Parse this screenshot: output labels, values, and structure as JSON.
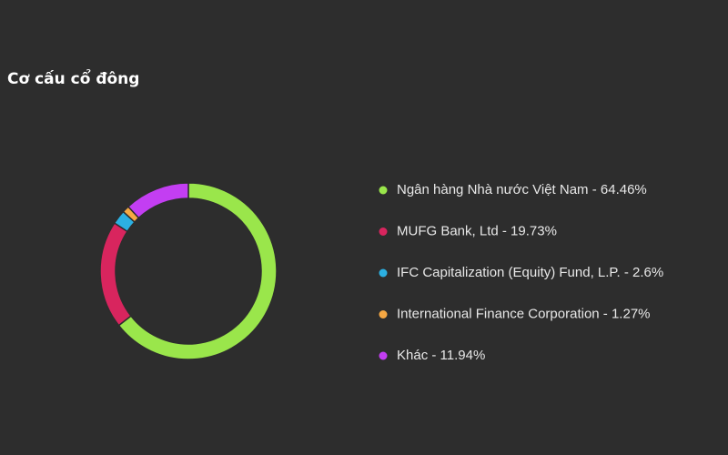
{
  "chart_data": {
    "type": "pie",
    "title": "Cơ cấu cổ đông",
    "categories": [
      "Ngân hàng Nhà nước Việt Nam - 64.46%",
      "MUFG Bank, Ltd - 19.73%",
      "IFC Capitalization (Equity) Fund, L.P. - 2.6%",
      "International Finance Corporation - 1.27%",
      "Khác - 11.94%"
    ],
    "values": [
      64.46,
      19.73,
      2.6,
      1.27,
      11.94
    ],
    "colors": [
      "#9ae64b",
      "#d8255e",
      "#2cb0e2",
      "#f6a843",
      "#c33ef2"
    ],
    "donut": true
  }
}
